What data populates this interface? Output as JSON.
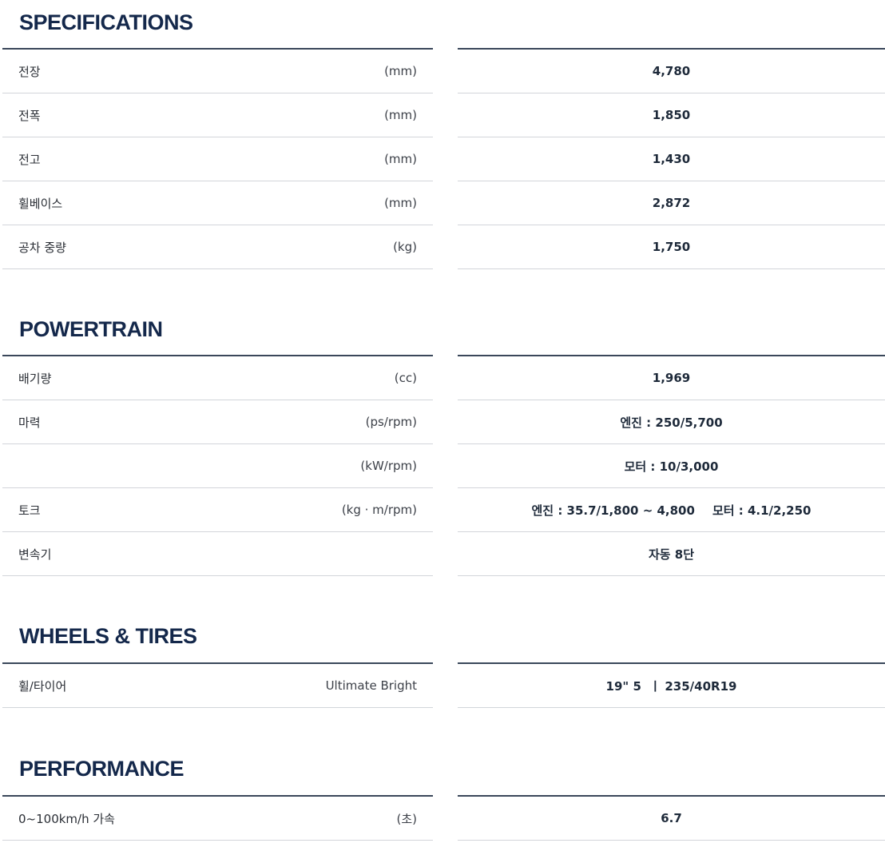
{
  "sections": [
    {
      "title": "SPECIFICATIONS",
      "rows": [
        {
          "label": "전장",
          "unit": "(mm)",
          "value": "4,780"
        },
        {
          "label": "전폭",
          "unit": "(mm)",
          "value": "1,850"
        },
        {
          "label": "전고",
          "unit": "(mm)",
          "value": "1,430"
        },
        {
          "label": "휠베이스",
          "unit": "(mm)",
          "value": "2,872"
        },
        {
          "label": "공차 중량",
          "unit": "(kg)",
          "value": "1,750"
        }
      ]
    },
    {
      "title": "POWERTRAIN",
      "rows": [
        {
          "label": "배기량",
          "unit": "(cc)",
          "value": "1,969"
        },
        {
          "label": "마력",
          "unit": "(ps/rpm)",
          "value": "엔진 : 250/5,700"
        },
        {
          "label": "",
          "unit": "(kW/rpm)",
          "value": "모터 : 10/3,000"
        },
        {
          "label": "토크",
          "unit": "(kg · m/rpm)",
          "value": "엔진 : 35.7/1,800 ~ 4,800",
          "value2": "모터 : 4.1/2,250"
        },
        {
          "label": "변속기",
          "unit": "",
          "value": "자동 8단"
        }
      ]
    },
    {
      "title": "WHEELS & TIRES",
      "rows": [
        {
          "label": "휠/타이어",
          "unit": "Ultimate Bright",
          "value": "19\" 5  ㅣ 235/40R19"
        }
      ]
    },
    {
      "title": "PERFORMANCE",
      "rows": [
        {
          "label": "0~100km/h 가속",
          "unit": "(초)",
          "value": "6.7"
        }
      ]
    }
  ]
}
